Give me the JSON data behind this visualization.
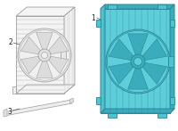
{
  "background_color": "#ffffff",
  "fig_width": 2.0,
  "fig_height": 1.47,
  "dpi": 100,
  "c1_fill": "#5ecfda",
  "c1_dark": "#3aacbc",
  "c1_edge": "#2a8898",
  "c1_tab": "#4ec4d0",
  "c2_fill": "#f2f2f2",
  "c2_edge": "#999999",
  "c2_edge_dark": "#777777",
  "c3_fill": "#eeeeee",
  "c3_edge": "#aaaaaa",
  "label1": "1",
  "label2": "2",
  "label3": "3",
  "label_color": "#222222",
  "label_fontsize": 5.5,
  "line_color": "#555555"
}
